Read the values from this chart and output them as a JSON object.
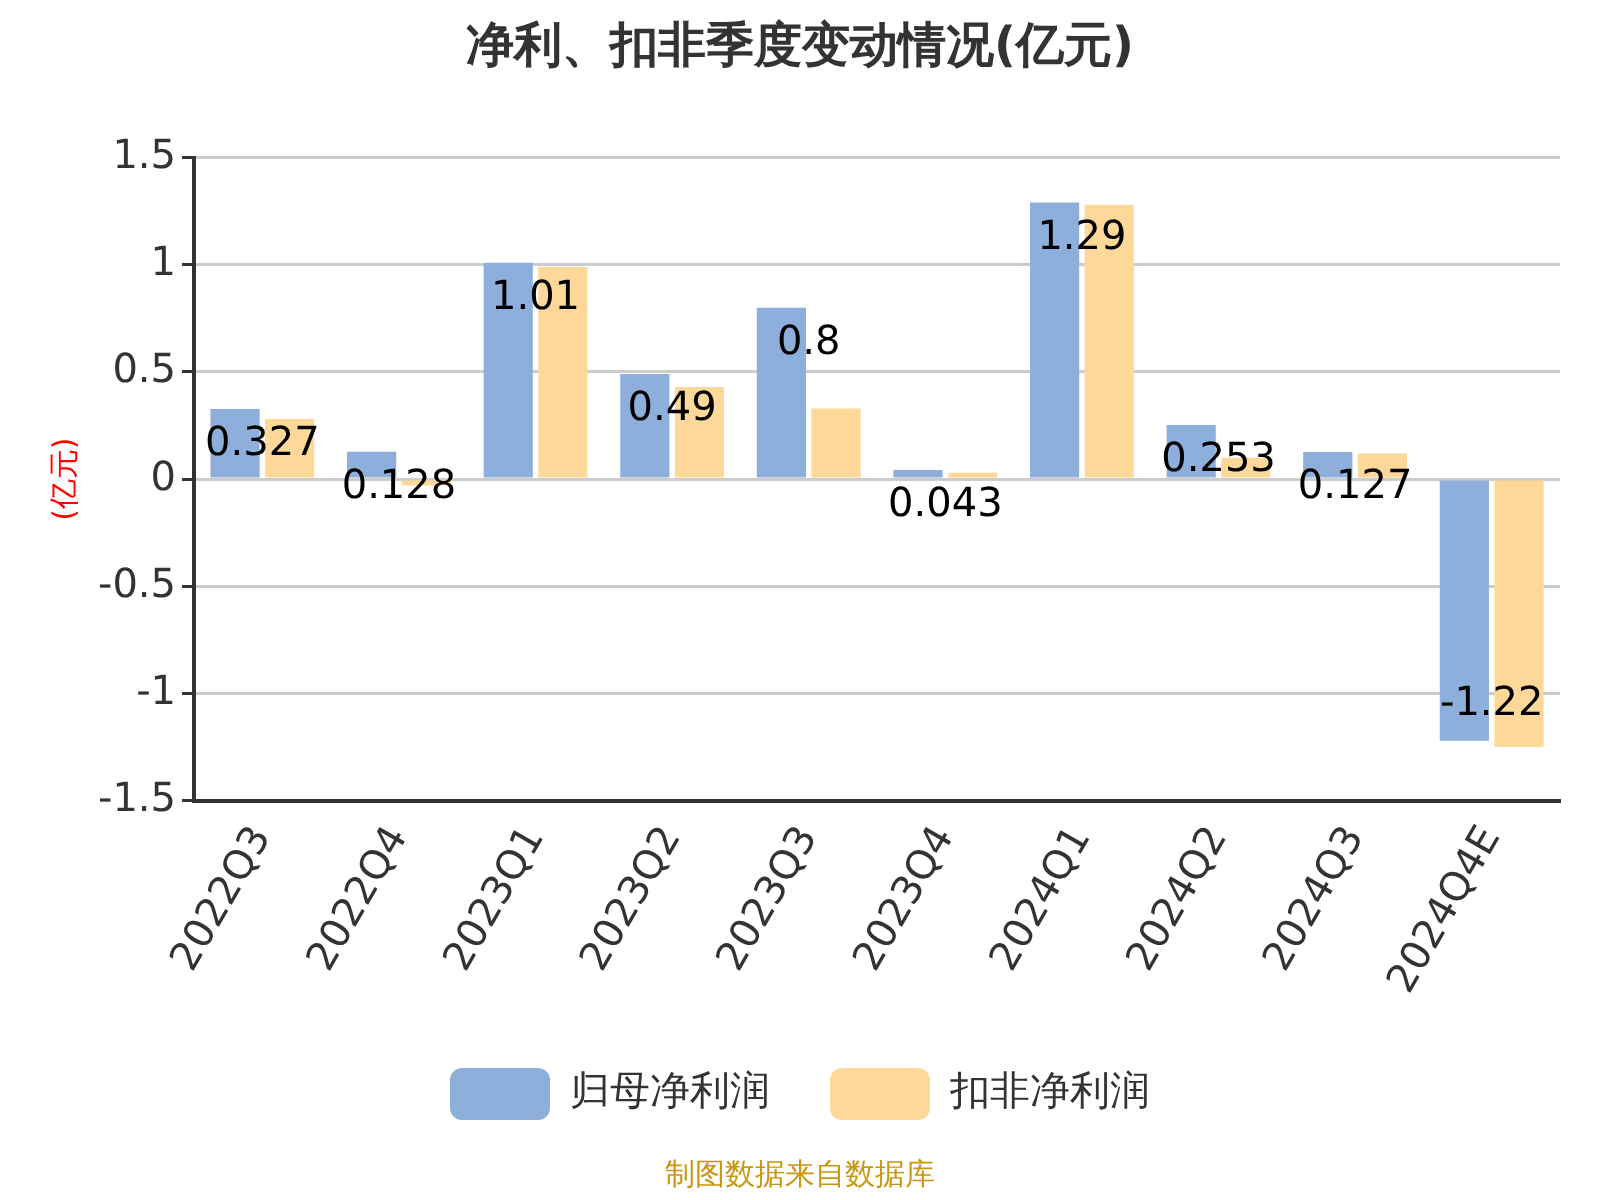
{
  "chart_data": {
    "type": "bar",
    "title": "净利、扣非季度变动情况(亿元)",
    "ylabel": "(亿元)",
    "categories": [
      "2022Q3",
      "2022Q4",
      "2023Q1",
      "2023Q2",
      "2023Q3",
      "2023Q4",
      "2024Q1",
      "2024Q2",
      "2024Q3",
      "2024Q4E"
    ],
    "series": [
      {
        "name": "归母净利润",
        "color": "#8eaedb",
        "values": [
          0.327,
          0.128,
          1.01,
          0.49,
          0.8,
          0.043,
          1.29,
          0.253,
          0.127,
          -1.22
        ],
        "value_labels": [
          "0.327",
          "0.128",
          "1.01",
          "0.49",
          "0.8",
          "0.043",
          "1.29",
          "0.253",
          "0.127",
          "-1.22"
        ]
      },
      {
        "name": "扣非净利润",
        "color": "#fdd898",
        "values": [
          0.28,
          -0.03,
          0.99,
          0.43,
          0.33,
          0.03,
          1.28,
          0.1,
          0.12,
          -1.25
        ]
      }
    ],
    "ylim": [
      -1.5,
      1.5
    ],
    "yticks": [
      -1.5,
      -1,
      -0.5,
      0,
      0.5,
      1,
      1.5
    ],
    "grid": "y",
    "legend": "bottom",
    "annotations": [
      "制图数据来自数据库"
    ]
  }
}
